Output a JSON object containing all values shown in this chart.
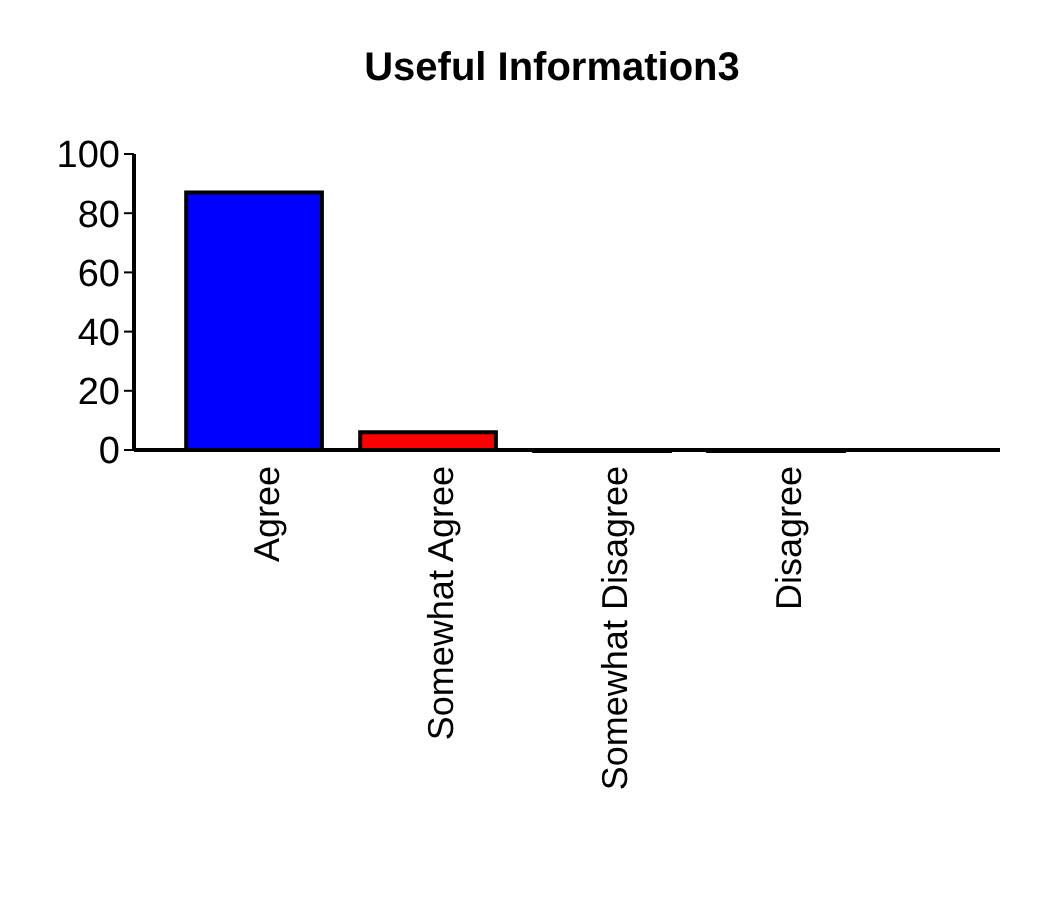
{
  "chart_data": {
    "type": "bar",
    "title": "Useful Information3",
    "categories": [
      "Agree",
      "Somewhat Agree",
      "Somewhat Disagree",
      "Disagree"
    ],
    "values": [
      87,
      6,
      0,
      0
    ],
    "colors": [
      "#0000ff",
      "#ff0000",
      "#c0c000",
      "#00c000"
    ],
    "ylim": [
      0,
      100
    ],
    "yticks": [
      0,
      20,
      40,
      60,
      80,
      100
    ]
  }
}
